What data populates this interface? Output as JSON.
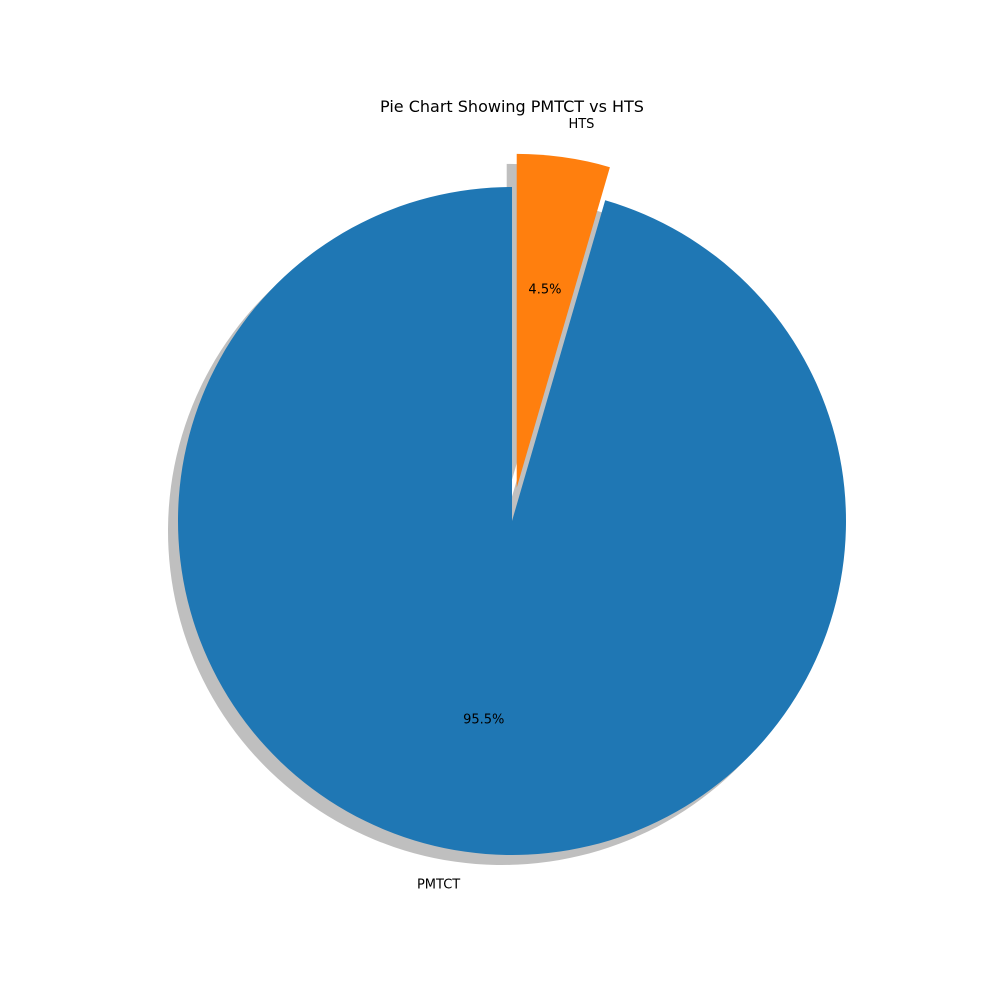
{
  "chart_data": {
    "type": "pie",
    "title": "Pie Chart Showing PMTCT vs HTS",
    "slices": [
      {
        "label": "PMTCT",
        "value": 95.5,
        "percent_label": "95.5%",
        "color": "#1f77b4",
        "explode": 0
      },
      {
        "label": "HTS",
        "value": 4.5,
        "percent_label": "4.5%",
        "color": "#ff7f0e",
        "explode": 0.1
      }
    ],
    "start_angle_degrees": 90,
    "direction": "counterclockwise",
    "shadow": true,
    "legend": "none"
  }
}
